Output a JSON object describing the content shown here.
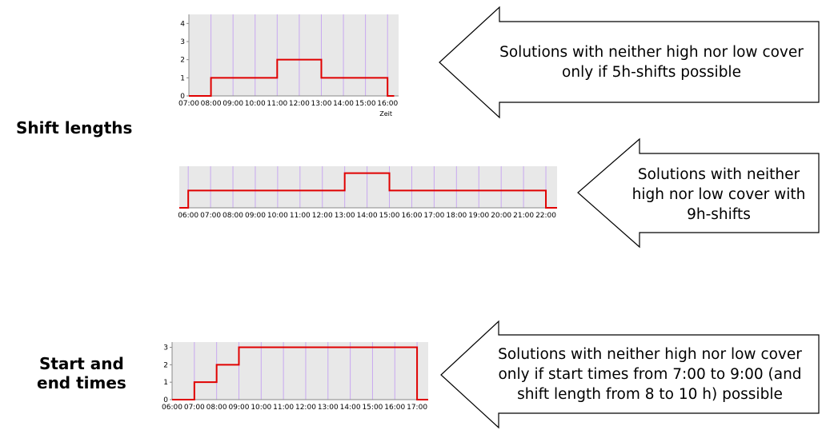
{
  "labels": {
    "shift_lengths": "Shift lengths",
    "start_end_line1": "Start and",
    "start_end_line2": "end times"
  },
  "callouts": [
    {
      "text": "Solutions with neither high nor low cover only if 5h-shifts possible"
    },
    {
      "text": "Solutions with neither high nor low cover with 9h-shifts"
    },
    {
      "text": "Solutions with neither high nor low cover only if start times from 7:00 to 9:00 (and shift length from 8 to 10 h) possible"
    }
  ],
  "colors": {
    "plot_bg": "#e8e8e8",
    "gridline": "#c8a8f0",
    "step_line": "#e00000",
    "axis": "#888888"
  },
  "chart_data": [
    {
      "type": "line",
      "step": true,
      "x": [
        "07:00",
        "08:00",
        "09:00",
        "10:00",
        "11:00",
        "12:00",
        "13:00",
        "14:00",
        "15:00",
        "16:00"
      ],
      "steps": [
        [
          7,
          0
        ],
        [
          8,
          1
        ],
        [
          11,
          2
        ],
        [
          13,
          1
        ],
        [
          16,
          0
        ],
        [
          16.3,
          0
        ]
      ],
      "yticks": [
        0,
        1,
        2,
        3,
        4
      ],
      "ylim": [
        0,
        4.5
      ],
      "xlabel": "Zeit"
    },
    {
      "type": "line",
      "step": true,
      "x": [
        "06:00",
        "07:00",
        "08:00",
        "09:00",
        "10:00",
        "11:00",
        "12:00",
        "13:00",
        "14:00",
        "15:00",
        "16:00",
        "17:00",
        "18:00",
        "19:00",
        "20:00",
        "21:00",
        "22:00"
      ],
      "steps": [
        [
          5.6,
          0
        ],
        [
          6,
          1
        ],
        [
          13,
          2
        ],
        [
          15,
          1
        ],
        [
          22,
          0
        ],
        [
          22.5,
          0
        ]
      ],
      "yticks": [],
      "ylim": [
        0,
        2.4
      ]
    },
    {
      "type": "line",
      "step": true,
      "x": [
        "06:00",
        "07:00",
        "08:00",
        "09:00",
        "10:00",
        "11:00",
        "12:00",
        "13:00",
        "14:00",
        "15:00",
        "16:00",
        "17:00"
      ],
      "steps": [
        [
          6,
          0
        ],
        [
          7,
          1
        ],
        [
          8,
          2
        ],
        [
          9,
          3
        ],
        [
          17,
          0
        ],
        [
          17.5,
          0
        ]
      ],
      "yticks": [
        0,
        1,
        2,
        3
      ],
      "ylim": [
        0,
        3.3
      ]
    }
  ]
}
